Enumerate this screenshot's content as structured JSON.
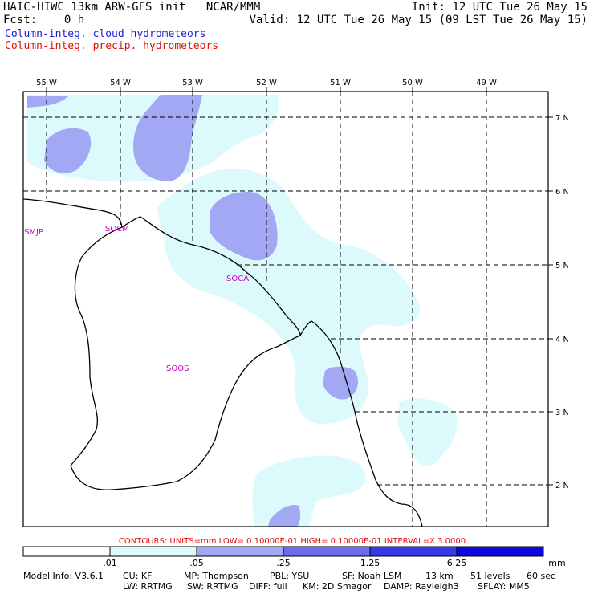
{
  "header": {
    "title": "HAIC-HIWC 13km ARW-GFS init   NCAR/MMM",
    "fcst": "Fcst:    0 h",
    "init": "Init: 12 UTC Tue 26 May 15",
    "valid": "Valid: 12 UTC Tue 26 May 15 (09 LST Tue 26 May 15)",
    "legend_cloud": "Column-integ. cloud hydrometeors",
    "legend_precip": "Column-integ. precip. hydrometeors",
    "colors": {
      "cloud": "#1c1cd6",
      "precip": "#e01010"
    }
  },
  "map": {
    "lon_labels": [
      "55 W",
      "54 W",
      "53 W",
      "52 W",
      "51 W",
      "50 W",
      "49 W"
    ],
    "lat_labels": [
      "7 N",
      "6 N",
      "5 N",
      "4 N",
      "3 N",
      "2 N"
    ],
    "stations": [
      "SMJP",
      "SOCM",
      "SOCA",
      "SOOS"
    ],
    "station_color": "#cc00cc",
    "fill_colors": {
      "light": "#dcfafc",
      "medium": "#a2a8f4",
      "heavy": "#6c6cf0"
    }
  },
  "contours": {
    "text": "CONTOURS:  UNITS=mm   LOW= 0.10000E-01   HIGH= 0.10000E-01   INTERVAL=X   3.0000",
    "color": "#e01010"
  },
  "colorbar": {
    "labels": [
      ".01",
      ".05",
      ".25",
      "1.25",
      "6.25"
    ],
    "units": "mm",
    "colors": [
      "#ffffff",
      "#dcfafc",
      "#a2a8f4",
      "#6c6cf0",
      "#3838e8",
      "#0a0ae0"
    ]
  },
  "footer": {
    "line1": [
      "Model Info: V3.6.1",
      "CU: KF",
      "MP: Thompson",
      "PBL: YSU",
      "SF: Noah LSM",
      "13 km",
      "51 levels",
      "60 sec"
    ],
    "line2": [
      "LW: RRTMG",
      "SW: RRTMG",
      "DIFF: full",
      "KM: 2D Smagor",
      "DAMP: Rayleigh3",
      "SFLAY: MM5"
    ]
  }
}
